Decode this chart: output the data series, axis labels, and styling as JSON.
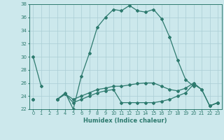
{
  "xlabel": "Humidex (Indice chaleur)",
  "x": [
    0,
    1,
    2,
    3,
    4,
    5,
    6,
    7,
    8,
    9,
    10,
    11,
    12,
    13,
    14,
    15,
    16,
    17,
    18,
    19,
    20,
    21,
    22,
    23
  ],
  "line1": [
    30,
    25.5,
    null,
    23.5,
    24.5,
    22,
    27,
    30.5,
    34.5,
    36,
    37.2,
    37,
    37.8,
    37,
    36.8,
    37.2,
    35.8,
    33,
    29.5,
    26.5,
    25.5,
    null,
    22.5,
    23
  ],
  "line2": [
    23.5,
    null,
    null,
    23.5,
    24.3,
    23,
    23.5,
    24,
    24.5,
    24.8,
    25,
    23,
    23,
    23,
    23,
    23,
    23.2,
    23.5,
    24,
    24.5,
    25.8,
    25,
    22.5,
    23
  ],
  "line3": [
    23.5,
    null,
    null,
    23.5,
    24.3,
    23.5,
    24,
    24.5,
    25,
    25.2,
    25.5,
    25.5,
    25.7,
    25.9,
    26,
    26,
    25.5,
    25,
    24.8,
    25.2,
    26,
    25,
    22.5,
    23
  ],
  "ylim": [
    22,
    38
  ],
  "yticks": [
    22,
    24,
    26,
    28,
    30,
    32,
    34,
    36,
    38
  ],
  "bg_color": "#cce8ec",
  "line_color": "#2d7a6e",
  "grid_color": "#aacdd4"
}
